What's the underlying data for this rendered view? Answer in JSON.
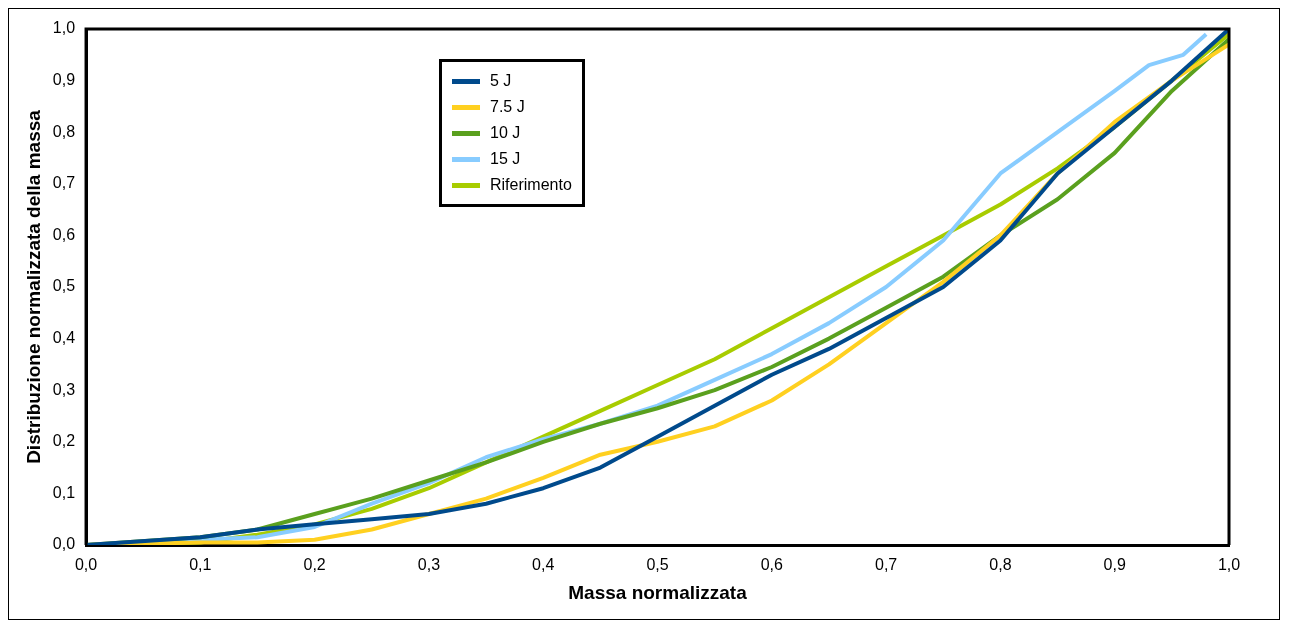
{
  "chart_data": {
    "type": "line",
    "xlabel": "Massa normalizzata",
    "ylabel": "Distribuzione normalizzata della massa",
    "x": [
      0,
      0.1,
      0.15,
      0.2,
      0.25,
      0.3,
      0.35,
      0.4,
      0.45,
      0.5,
      0.55,
      0.6,
      0.65,
      0.7,
      0.75,
      0.8,
      0.85,
      0.9,
      0.95,
      1
    ],
    "series": [
      {
        "name": "5 J",
        "color": "#004a8c",
        "values": [
          0,
          0.015,
          0.03,
          0.04,
          0.05,
          0.06,
          0.08,
          0.11,
          0.15,
          0.21,
          0.27,
          0.33,
          0.38,
          0.44,
          0.5,
          0.59,
          0.72,
          0.81,
          0.9,
          1.0
        ]
      },
      {
        "name": "7.5 J",
        "color": "#ffd020",
        "values": [
          0,
          0.005,
          0.005,
          0.01,
          0.03,
          0.06,
          0.09,
          0.13,
          0.175,
          0.2,
          0.23,
          0.28,
          0.35,
          0.43,
          0.51,
          0.6,
          0.72,
          0.82,
          0.9,
          0.97
        ]
      },
      {
        "name": "10 J",
        "color": "#5aa01e",
        "values": [
          0,
          0.015,
          0.03,
          0.06,
          0.09,
          0.125,
          0.16,
          0.2,
          0.235,
          0.265,
          0.3,
          0.345,
          0.4,
          0.46,
          0.52,
          0.6,
          0.67,
          0.76,
          0.88,
          0.98
        ]
      },
      {
        "name": "15 J",
        "color": "#88ccff",
        "x": [
          0,
          0.1,
          0.15,
          0.2,
          0.25,
          0.3,
          0.35,
          0.4,
          0.45,
          0.5,
          0.55,
          0.6,
          0.65,
          0.7,
          0.75,
          0.8,
          0.85,
          0.9,
          0.93,
          0.96,
          0.98
        ],
        "values": [
          0,
          null,
          0.015,
          0.035,
          0.08,
          0.12,
          0.17,
          0.205,
          0.235,
          0.27,
          0.32,
          0.37,
          0.43,
          0.5,
          0.59,
          0.72,
          0.8,
          0.88,
          0.93,
          0.95,
          0.99
        ]
      },
      {
        "name": "Riferimento",
        "color": "#a8cc00",
        "values": [
          0,
          0.005,
          0.02,
          0.04,
          0.07,
          0.11,
          0.16,
          0.21,
          0.26,
          0.31,
          0.36,
          0.42,
          0.48,
          0.54,
          0.6,
          0.66,
          0.73,
          0.81,
          0.9,
          0.99
        ]
      }
    ],
    "xlim": [
      0,
      1
    ],
    "ylim": [
      0,
      1
    ],
    "xticks": [
      {
        "value": 0,
        "label": "0,0"
      },
      {
        "value": 0.1,
        "label": "0,1"
      },
      {
        "value": 0.2,
        "label": "0,2"
      },
      {
        "value": 0.3,
        "label": "0,3"
      },
      {
        "value": 0.4,
        "label": "0,4"
      },
      {
        "value": 0.5,
        "label": "0,5"
      },
      {
        "value": 0.6,
        "label": "0,6"
      },
      {
        "value": 0.7,
        "label": "0,7"
      },
      {
        "value": 0.8,
        "label": "0,8"
      },
      {
        "value": 0.9,
        "label": "0,9"
      },
      {
        "value": 1,
        "label": "1,0"
      }
    ],
    "yticks": [
      {
        "value": 0,
        "label": "0,0"
      },
      {
        "value": 0.1,
        "label": "0,1"
      },
      {
        "value": 0.2,
        "label": "0,2"
      },
      {
        "value": 0.3,
        "label": "0,3"
      },
      {
        "value": 0.4,
        "label": "0,4"
      },
      {
        "value": 0.5,
        "label": "0,5"
      },
      {
        "value": 0.6,
        "label": "0,6"
      },
      {
        "value": 0.7,
        "label": "0,7"
      },
      {
        "value": 0.8,
        "label": "0,8"
      },
      {
        "value": 0.9,
        "label": "0,9"
      },
      {
        "value": 1,
        "label": "1,0"
      }
    ],
    "grid": false,
    "legend": "top left",
    "marker": "none",
    "line_style": "solid"
  }
}
